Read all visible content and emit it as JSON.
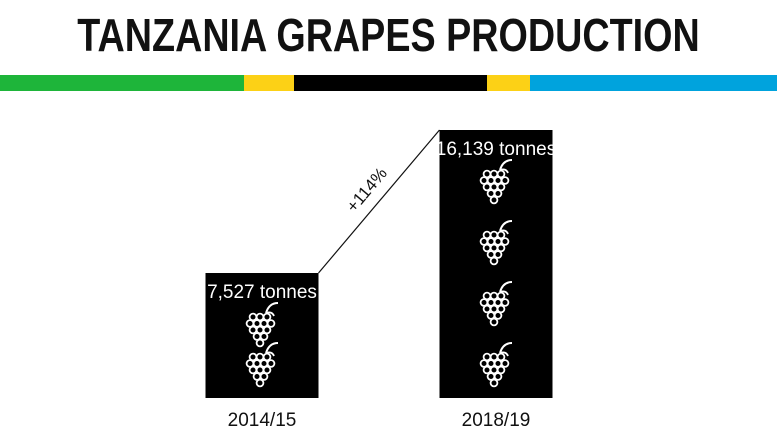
{
  "title": "TANZANIA GRAPES PRODUCTION",
  "flag_colors": [
    "#1eb53a",
    "#fcd116",
    "#000000",
    "#fcd116",
    "#00a3dd"
  ],
  "icon": "grapes-icon",
  "chart_data": {
    "type": "bar",
    "categories": [
      "2014/15",
      "2018/19"
    ],
    "values": [
      7527,
      16139
    ],
    "value_labels": [
      "7,527 tonnes",
      "16,139 tonnes"
    ],
    "icons_per_bar": [
      2,
      4
    ],
    "annotation": "+114%",
    "bar_color": "#000000"
  }
}
